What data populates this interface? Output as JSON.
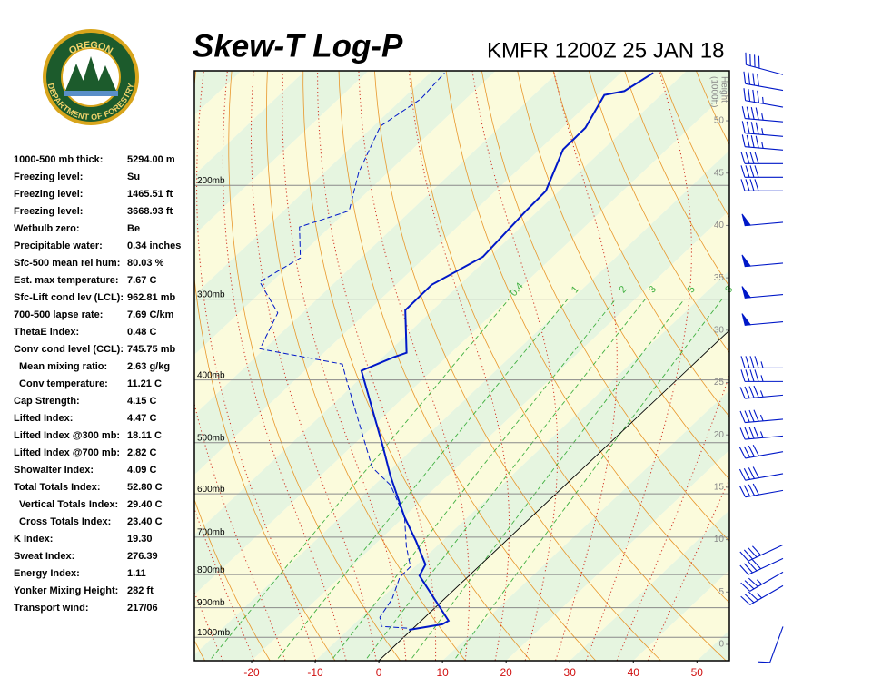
{
  "logo": {
    "top": "OREGON",
    "bottom": "DEPARTMENT OF FORESTRY"
  },
  "panel": {
    "rows": [
      [
        "1000-500 mb thick:",
        "5294.00 m"
      ],
      [
        "Freezing level:",
        "Su"
      ],
      [
        "Freezing level:",
        "1465.51 ft"
      ],
      [
        "Freezing level:",
        "3668.93 ft"
      ],
      [
        "Wetbulb zero:",
        "Be"
      ],
      [
        "Precipitable water:",
        "0.34 inches"
      ],
      [
        "Sfc-500 mean rel hum:",
        "80.03 %"
      ],
      [
        "Est. max temperature:",
        "7.67 C"
      ],
      [
        "Sfc-Lift cond lev (LCL):",
        "962.81 mb"
      ],
      [
        "700-500 lapse rate:",
        "7.69 C/km"
      ],
      [
        "ThetaE index:",
        "0.48 C"
      ],
      [
        "Conv cond level (CCL):",
        "745.75 mb"
      ],
      [
        "Mean mixing ratio:",
        "2.63 g/kg"
      ],
      [
        "Conv temperature:",
        "11.21 C"
      ],
      [
        "Cap Strength:",
        "4.15 C"
      ],
      [
        "Lifted Index:",
        "4.47 C"
      ],
      [
        "Lifted Index @300 mb:",
        "18.11 C"
      ],
      [
        "Lifted Index @700 mb:",
        "2.82 C"
      ],
      [
        "Showalter Index:",
        "4.09 C"
      ],
      [
        "Total Totals Index:",
        "52.80 C"
      ],
      [
        "Vertical Totals Index:",
        "29.40 C"
      ],
      [
        "Cross Totals Index:",
        "23.40 C"
      ],
      [
        "K Index:",
        "19.30"
      ],
      [
        "Sweat Index:",
        "276.39"
      ],
      [
        "Energy Index:",
        "1.11"
      ],
      [
        "Yonker Mixing Height:",
        "282 ft"
      ],
      [
        "Transport wind:",
        "217/06"
      ]
    ]
  },
  "chart_data": {
    "type": "skew-t",
    "title": "Skew-T Log-P",
    "subtitle": "KMFR 1200Z 25 JAN 18",
    "height_label": [
      "Height",
      "(1000ft)"
    ],
    "xlim": [
      -29,
      55.1
    ],
    "xticks": [
      -20,
      -10,
      0,
      10,
      20,
      30,
      40,
      50
    ],
    "ylim": [
      1087,
      133
    ],
    "ylog": true,
    "yticks": [
      {
        "value": 1000,
        "label": "1000mb"
      },
      {
        "value": 900,
        "label": "900mb"
      },
      {
        "value": 800,
        "label": "800mb"
      },
      {
        "value": 700,
        "label": "700mb"
      },
      {
        "value": 600,
        "label": "600mb"
      },
      {
        "value": 500,
        "label": "500mb"
      },
      {
        "value": 400,
        "label": "400mb"
      },
      {
        "value": 300,
        "label": "300mb"
      },
      {
        "value": 200,
        "label": "200mb"
      }
    ],
    "hlim": [
      -1.56,
      54.77
    ],
    "hticks": [
      0,
      5,
      10,
      15,
      20,
      25,
      30,
      35,
      40,
      45,
      50
    ],
    "mixing_ratios": [
      {
        "value": 0.4,
        "label": "0.4"
      },
      1,
      2,
      3,
      5,
      8
    ],
    "temperature": {
      "color": "#0018c8",
      "pressure": [
        974,
        955,
        943,
        803,
        772,
        710,
        651,
        562,
        506,
        387,
        369,
        363,
        312,
        285,
        258,
        219,
        204,
        176,
        163,
        145,
        143,
        134
      ],
      "values": [
        -0.4,
        3.9,
        4.3,
        -7.8,
        -8.7,
        -14.1,
        -20.0,
        -29.1,
        -35.2,
        -51.1,
        -48.3,
        -47.0,
        -54.3,
        -54.4,
        -51.0,
        -51.9,
        -52.1,
        -56.3,
        -56.4,
        -58.9,
        -56.4,
        -54.9
      ]
    },
    "dewpoint": {
      "color": "#0018c8",
      "pressure": [
        968,
        962,
        931,
        873,
        808,
        778,
        724,
        652,
        582,
        546,
        400,
        378,
        358,
        315,
        282,
        259,
        232,
        219,
        191,
        162,
        147,
        134
      ],
      "values": [
        -1.0,
        -5.3,
        -7.1,
        -8.2,
        -10.6,
        -10.7,
        -14.7,
        -19.9,
        -27.4,
        -33.3,
        -51.9,
        -55.2,
        -70.7,
        -73.9,
        -81.9,
        -79.5,
        -84.8,
        -79.7,
        -84.6,
        -88.9,
        -87.1,
        -87.7
      ]
    },
    "winds": {
      "color": "#0018c8",
      "height": [
        54.4,
        52.9,
        51.3,
        49.9,
        48.5,
        47.2,
        45.9,
        44.6,
        43.3,
        40.3,
        36.4,
        33.4,
        30.8,
        26.4,
        25.1,
        23.8,
        21.5,
        19.9,
        18.4,
        16.3,
        14.7,
        9.5,
        8.2,
        6.9,
        5.6,
        1.7
      ],
      "direction": [
        285,
        280,
        280,
        275,
        275,
        275,
        270,
        270,
        270,
        265,
        265,
        265,
        265,
        270,
        270,
        265,
        265,
        265,
        260,
        260,
        260,
        245,
        245,
        240,
        240,
        200
      ],
      "speed": [
        40,
        40,
        45,
        45,
        45,
        45,
        40,
        40,
        40,
        50,
        50,
        50,
        50,
        45,
        45,
        45,
        45,
        45,
        40,
        40,
        40,
        40,
        40,
        35,
        35,
        10
      ]
    }
  }
}
